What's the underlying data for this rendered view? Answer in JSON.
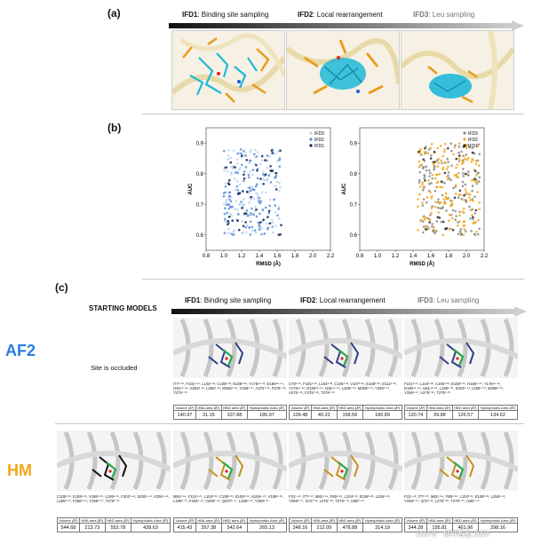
{
  "panels": {
    "a": "(a)",
    "b": "(b)",
    "c": "(c)"
  },
  "stages": [
    {
      "bold": "IFD1",
      "rest": ": Binding site sampling"
    },
    {
      "bold": "IFD2",
      "rest": ": Local rearrangement"
    },
    {
      "bold": "IFD3",
      "rest": ": Leu sampling"
    }
  ],
  "starting_models": "STARTING MODELS",
  "models": {
    "af2": "AF2",
    "hm": "HM"
  },
  "occluded_text": "Site is occluded",
  "metric_headers": [
    "Volume (Å³)",
    "HBA area (Å²)",
    "HBD area (Å²)",
    "Hydrophobic Area (Å²)"
  ],
  "residues": {
    "af2_ifd1": "I77²·⁶⁰, F101³·²⁹, L104³·³², C105³·³³, E108³·³⁶, Y178⁴⁵·⁵², D180⁴⁵·⁵⁴, I181⁴⁵·⁵⁵, S254⁶·⁵², L255⁶·⁵³, M258⁶·⁵⁶, Y259⁶·⁵⁷, A275⁷·³⁵, F278⁷·³⁸, T279⁷·³⁹",
    "af2_ifd2": "C73²·⁵⁶, F101³·²⁹, L104³·³², C105³·³³, V107³·³⁵, E108³·³⁶, D111³·³⁹, Y178⁴⁵·⁵², D180⁴⁵·⁵⁴, I181⁴⁵·⁵⁵, L255⁶·⁵³, M258⁶·⁵⁶, Y259⁶·⁵⁷, A275⁷·³⁵, F278⁷·³⁸, T279⁷·³⁹",
    "af2_ifd3": "F101³·²⁹, L104³·³², C105³·³³, E108³·³⁶, H159⁴·⁶⁰, Y178⁴⁵·⁵², D180⁴⁵·⁵⁴, I181⁴⁵·⁵⁵, L199⁵·³⁹, S203⁵·⁴³, L255⁶·⁵³, M258⁶·⁵⁶, Y259⁶·⁵⁷, A275⁷·³⁵, T279⁷·³⁹",
    "hm_start": "C105³·³³, E108³·³⁶, V198⁵·³⁸, L199⁵·³⁹, F202⁵·⁴², S203⁵·⁴³, V206⁵·⁴⁶, L255⁶·⁵³, F256⁶·⁵⁴, Y259⁶·⁵⁷, T279⁷·³⁹",
    "hm_ifd1": "M81²·⁶⁴, F101³·²⁹, L104³·³², C105³·³³, E108³·³⁶, H159⁴·⁶⁰, V198⁵·³⁸, L199⁵·³⁹, F202⁵·⁴², V206⁵·⁴⁶, Q207⁵·⁴⁷, L255⁶·⁵³, Y259⁶·⁵⁷",
    "hm_ifd2": "F31¹·⁴³, I77²·⁶⁰, M81²·⁶⁴, F85²·⁶⁸, L104³·³², E108³·³⁶, L255⁶·⁵³, Y259⁶·⁵⁷, I272⁷·³², L276⁷·³⁶, T279⁷·³⁹, I280⁷·⁴⁰",
    "hm_ifd3": "F31¹·⁴³, I77²·⁶⁰, M81²·⁶⁴, F85²·⁶⁸, L104³·³², E108³·³⁶, L255⁶·⁵³, Y259⁶·⁵⁷, I272⁷·³², L276⁷·³⁶, T279⁷·³⁹, I280⁷·⁴⁰"
  },
  "metrics": {
    "af2_ifd1": [
      "140.97",
      "31.15",
      "107.88",
      "185.97"
    ],
    "af2_ifd2": [
      "109.48",
      "40.22",
      "158.56",
      "180.89"
    ],
    "af2_ifd3": [
      "120.74",
      "39.88",
      "126.57",
      "134.62"
    ],
    "hm_start": [
      "544.68",
      "213.73",
      "553.78",
      "438.63"
    ],
    "hm_ifd1": [
      "415.43",
      "357.38",
      "542.64",
      "265.13"
    ],
    "hm_ifd2": [
      "348.16",
      "212.09",
      "478.88",
      "314.19"
    ],
    "hm_ifd3": [
      "344.28",
      "195.81",
      "461.96",
      "298.16"
    ]
  },
  "watermark": "公众号 · 燧坤智能 2024",
  "chart_data": [
    {
      "type": "scatter",
      "xlabel": "RMSD (Å)",
      "ylabel": "AUC",
      "xlim": [
        0.8,
        2.2
      ],
      "ylim": [
        0.55,
        0.95
      ],
      "xticks": [
        "0.8",
        "1.0",
        "1.2",
        "1.4",
        "1.6",
        "1.8",
        "2.0",
        "2.2"
      ],
      "yticks": [
        "0.6",
        "0.7",
        "0.8",
        "0.9"
      ],
      "legend_position": "top-right",
      "series": [
        {
          "name": "IFD3",
          "color": "#b9d3f2",
          "count": 140
        },
        {
          "name": "IFD2",
          "color": "#5b8fd6",
          "count": 110
        },
        {
          "name": "IFD1",
          "color": "#0e1f4d",
          "count": 50
        }
      ],
      "x_range": [
        1.0,
        1.65
      ],
      "y_range": [
        0.6,
        0.88
      ]
    },
    {
      "type": "scatter",
      "xlabel": "RMSD (Å)",
      "ylabel": "AUC",
      "xlim": [
        0.8,
        2.2
      ],
      "ylim": [
        0.55,
        0.95
      ],
      "xticks": [
        "0.8",
        "1.0",
        "1.2",
        "1.4",
        "1.6",
        "1.8",
        "2.0",
        "2.2"
      ],
      "yticks": [
        "0.6",
        "0.7",
        "0.8",
        "0.9"
      ],
      "legend_position": "top-right",
      "series": [
        {
          "name": "IFD3",
          "color": "#8a8a8a",
          "count": 160
        },
        {
          "name": "IFD2",
          "color": "#f2a71b",
          "count": 160
        },
        {
          "name": "IFD1",
          "color": "#2b2b2b",
          "count": 30
        }
      ],
      "x_range": [
        1.45,
        2.15
      ],
      "y_range": [
        0.6,
        0.9
      ]
    }
  ]
}
